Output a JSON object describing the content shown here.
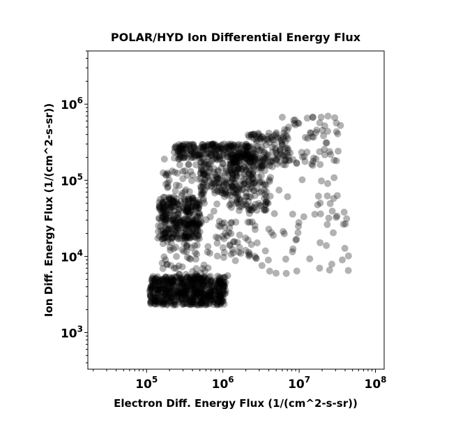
{
  "chart_data": {
    "type": "scatter",
    "title": "POLAR/HYD  Ion Differential Energy Flux",
    "xlabel": "Electron Diff. Energy Flux (1/(cm^2-s-sr))",
    "ylabel": "Ion Diff. Energy Flux (1/(cm^2-s-sr))",
    "xscale": "log",
    "yscale": "log",
    "xlim": [
      17000,
      130000000
    ],
    "ylim": [
      330,
      5000000
    ],
    "x_ticks": [
      {
        "value": 100000,
        "base": "10",
        "exp": "5"
      },
      {
        "value": 1000000,
        "base": "10",
        "exp": "6"
      },
      {
        "value": 10000000,
        "base": "10",
        "exp": "7"
      },
      {
        "value": 100000000,
        "base": "10",
        "exp": "8"
      }
    ],
    "y_ticks": [
      {
        "value": 1000,
        "base": "10",
        "exp": "3"
      },
      {
        "value": 10000,
        "base": "10",
        "exp": "4"
      },
      {
        "value": 100000,
        "base": "10",
        "exp": "5"
      },
      {
        "value": 1000000,
        "base": "10",
        "exp": "6"
      }
    ],
    "marker_color": "#000000",
    "marker_alpha": 0.3,
    "grid": false,
    "legend": false,
    "clusters": [
      {
        "x": [
          110000,
          1100000
        ],
        "y": [
          2300,
          5500
        ],
        "n": 600
      },
      {
        "x": [
          140000,
          500000
        ],
        "y": [
          17000,
          60000
        ],
        "n": 260
      },
      {
        "x": [
          160000,
          650000
        ],
        "y": [
          5000,
          200000
        ],
        "n": 160
      },
      {
        "x": [
          230000,
          2200000
        ],
        "y": [
          190000,
          300000
        ],
        "n": 230
      },
      {
        "x": [
          500000,
          1600000
        ],
        "y": [
          60000,
          190000
        ],
        "n": 110
      },
      {
        "x": [
          1200000,
          3800000
        ],
        "y": [
          40000,
          210000
        ],
        "n": 170
      },
      {
        "x": [
          2000000,
          7500000
        ],
        "y": [
          150000,
          420000
        ],
        "n": 120
      },
      {
        "x": [
          5000000,
          35000000
        ],
        "y": [
          150000,
          700000
        ],
        "n": 70
      },
      {
        "x": [
          300000,
          45000000
        ],
        "y": [
          5500,
          110000
        ],
        "n": 110
      },
      {
        "x": [
          800000,
          3000000
        ],
        "y": [
          9000,
          30000
        ],
        "n": 40
      }
    ]
  }
}
